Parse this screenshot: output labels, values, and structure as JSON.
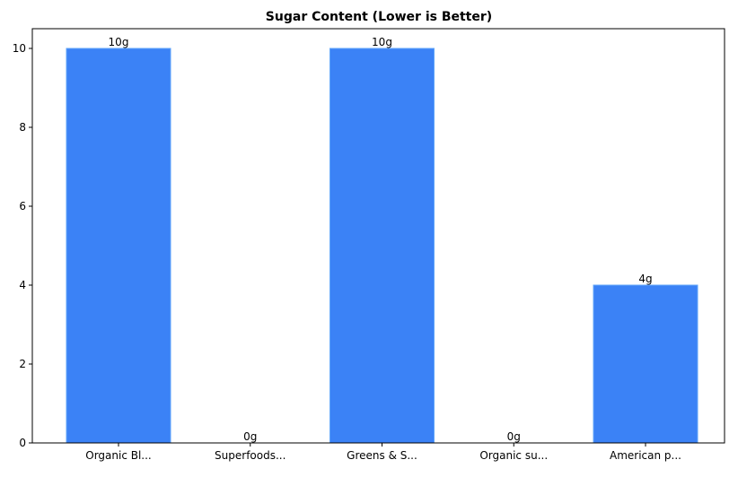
{
  "chart_data": {
    "type": "bar",
    "title": "Sugar Content (Lower is Better)",
    "xlabel": "",
    "ylabel": "",
    "categories": [
      "Organic Bl...",
      "Superfoods...",
      "Greens & S...",
      "Organic su...",
      "American p..."
    ],
    "values": [
      10,
      0,
      10,
      0,
      4
    ],
    "data_labels": [
      "10g",
      "0g",
      "10g",
      "0g",
      "4g"
    ],
    "ylim": [
      0,
      10.5
    ],
    "yticks": [
      0,
      2,
      4,
      6,
      8,
      10
    ],
    "grid": false,
    "legend": null,
    "bar_color": "#3b82f6",
    "bar_edge_color": "#60a5fa"
  }
}
